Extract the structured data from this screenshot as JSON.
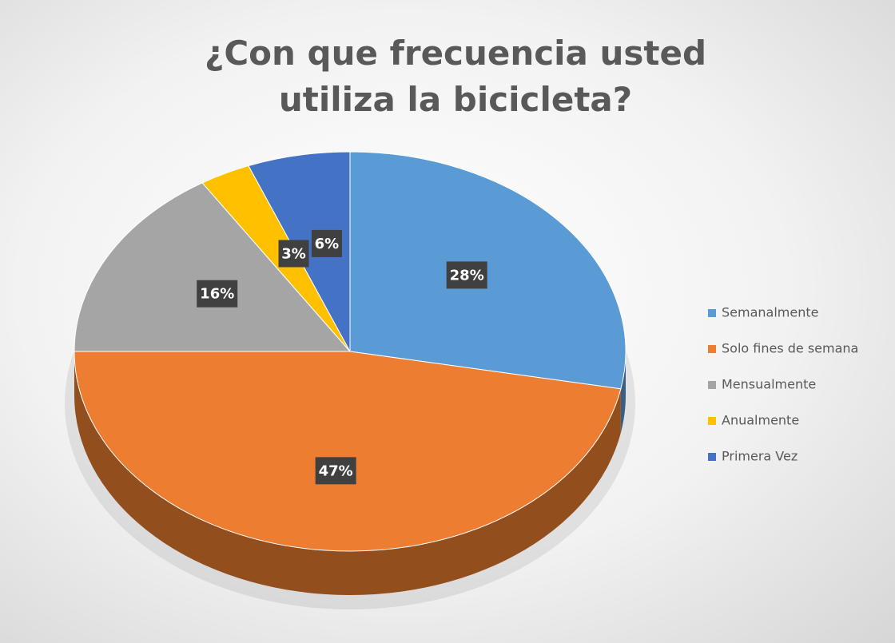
{
  "chart_data": {
    "type": "pie",
    "title": "¿Con que frecuencia usted utiliza la bicicleta?",
    "categories": [
      "Semanalmente",
      "Solo fines de semana",
      "Mensualmente",
      "Anualmente",
      "Primera Vez"
    ],
    "values": [
      28,
      47,
      16,
      3,
      6
    ],
    "value_labels": [
      "28%",
      "47%",
      "16%",
      "3%",
      "6%"
    ],
    "colors": [
      "#5b9bd5",
      "#ed7d31",
      "#a5a5a5",
      "#ffc000",
      "#4472c4"
    ],
    "legend": "right"
  }
}
